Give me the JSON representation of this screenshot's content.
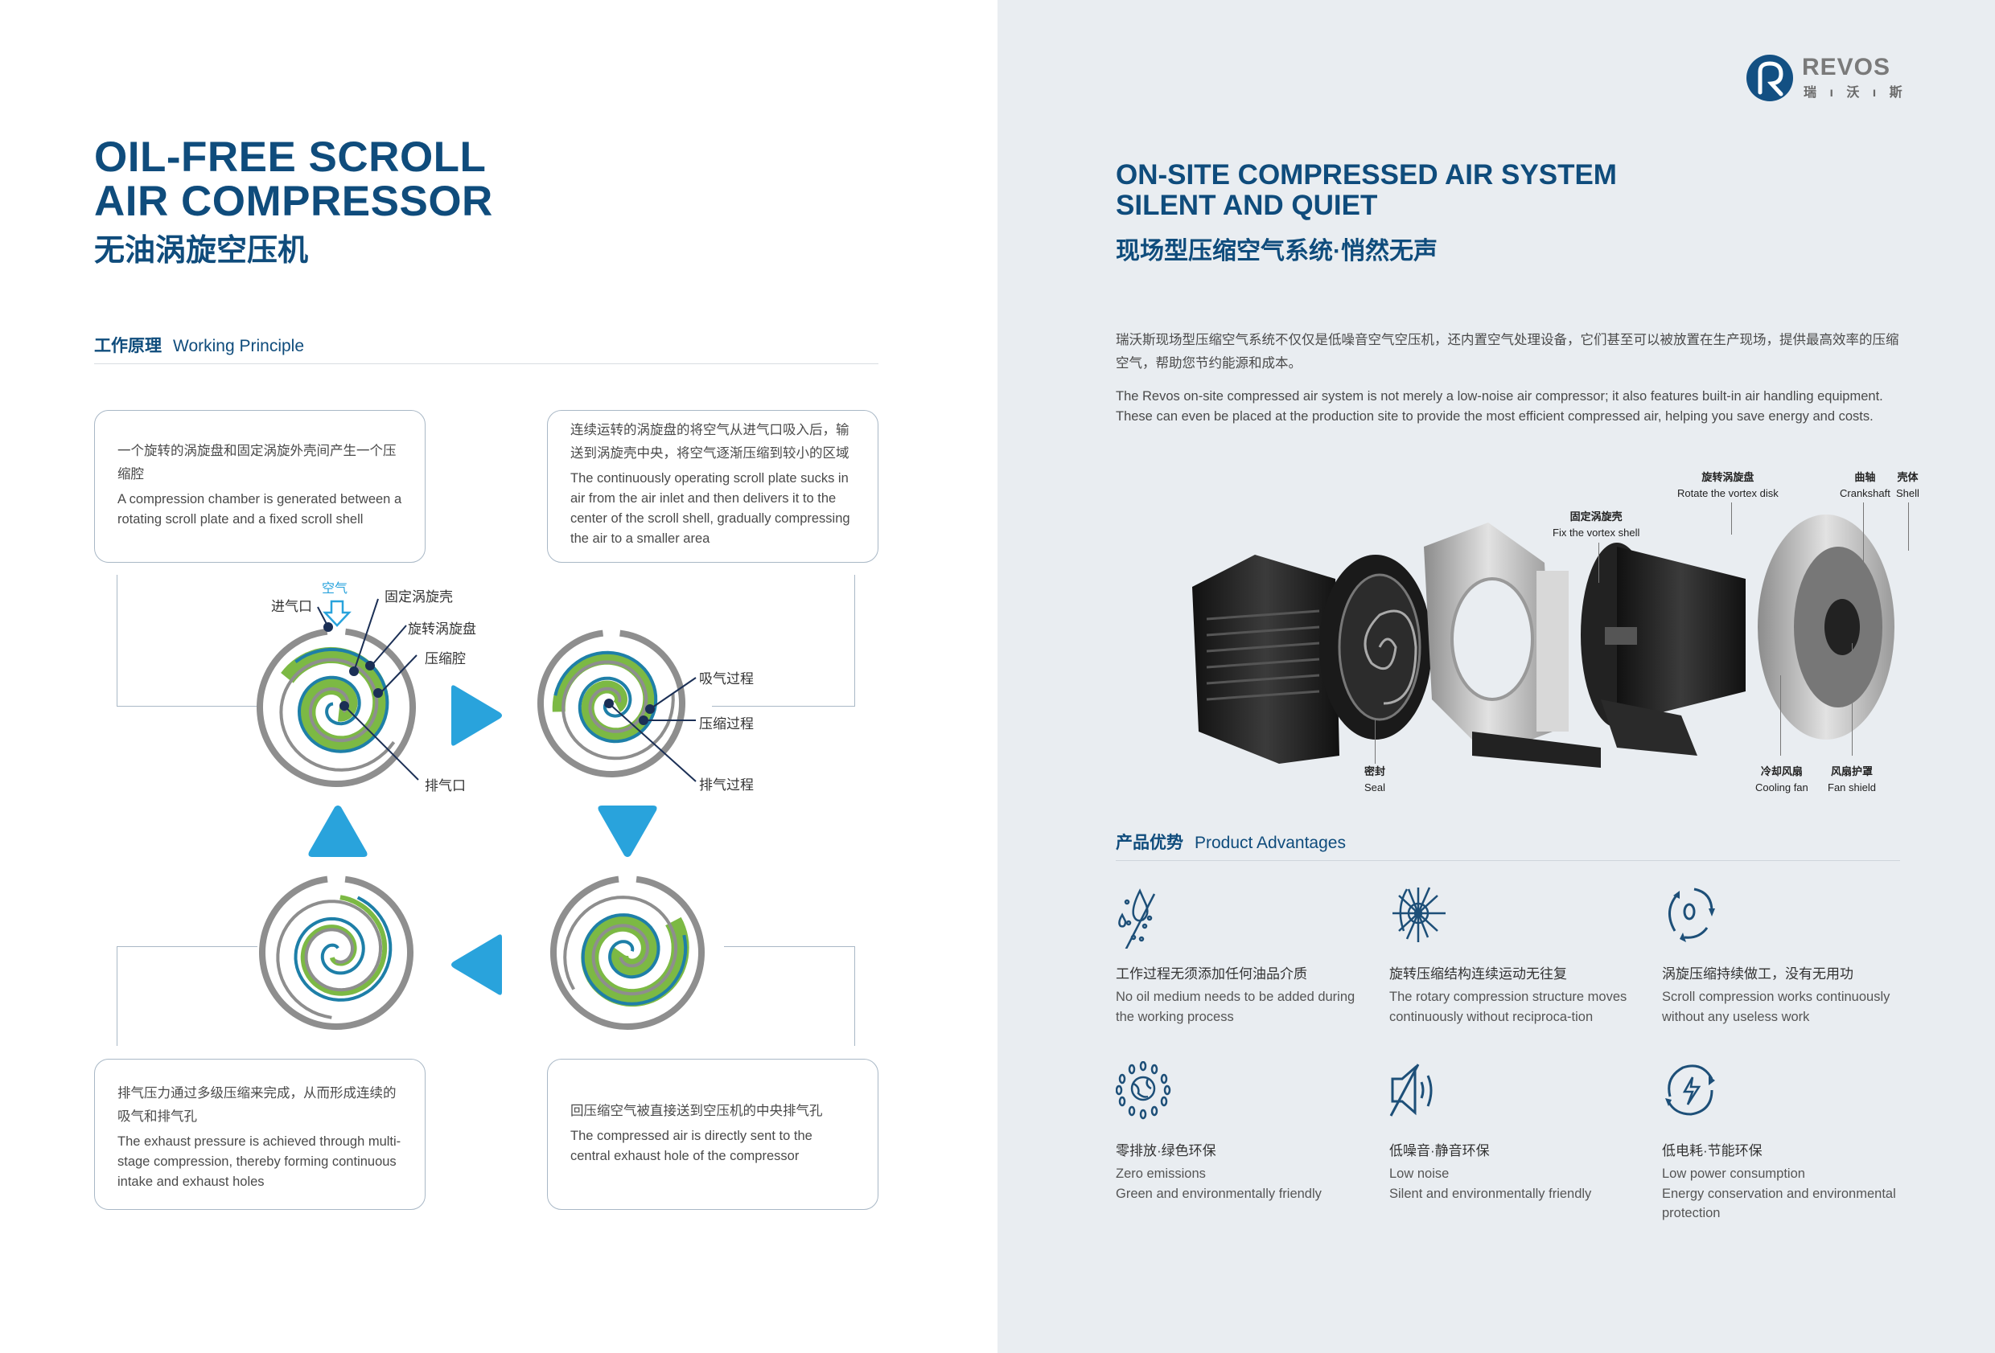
{
  "left": {
    "title_line1": "OIL-FREE SCROLL",
    "title_line2": "AIR COMPRESSOR",
    "title_zh": "无油涡旋空压机",
    "section_zh": "工作原理",
    "section_en": "Working Principle",
    "steps": [
      {
        "zh": "一个旋转的涡旋盘和固定涡旋外壳间产生一个压缩腔",
        "en": "A compression chamber is generated between a rotating scroll plate and a fixed scroll shell"
      },
      {
        "zh": "连续运转的涡旋盘的将空气从进气口吸入后，输送到涡旋壳中央，将空气逐渐压缩到较小的区域",
        "en": "The continuously operating scroll plate sucks in air from the air inlet and then delivers it to the center of the scroll shell, gradually compressing the air to a smaller area"
      },
      {
        "zh": "排气压力通过多级压缩来完成，从而形成连续的吸气和排气孔",
        "en": "The exhaust pressure is achieved through multi-stage compression, thereby forming continuous intake and exhaust holes"
      },
      {
        "zh": "回压缩空气被直接送到空压机的中央排气孔",
        "en": "The compressed air is directly sent to the central exhaust hole of the compressor"
      }
    ],
    "diagram1_labels": {
      "air": "空气",
      "inlet": "进气口",
      "fixed_shell": "固定涡旋壳",
      "rotating_disk": "旋转涡旋盘",
      "chamber": "压缩腔",
      "outlet": "排气口"
    },
    "diagram2_labels": {
      "intake": "吸气过程",
      "compress": "压缩过程",
      "exhaust": "排气过程"
    }
  },
  "right": {
    "logo_text": "REVOS",
    "logo_zh": "瑞 ı 沃 ı 斯",
    "title_line1": "ON-SITE COMPRESSED AIR SYSTEM",
    "title_line2": "SILENT AND QUIET",
    "title_zh": "现场型压缩空气系统·悄然无声",
    "intro_zh": "瑞沃斯现场型压缩空气系统不仅仅是低噪音空气空压机，还内置空气处理设备，它们甚至可以被放置在生产现场，提供最高效率的压缩空气，帮助您节约能源和成本。",
    "intro_en": "The Revos on-site compressed air system is not merely a low-noise air compressor; it also features built-in air handling equipment. These can even be placed at the production site to provide the most efficient compressed air, helping you save energy and costs.",
    "parts": [
      {
        "zh": "固定涡旋壳",
        "en": "Fix the vortex shell"
      },
      {
        "zh": "旋转涡旋盘",
        "en": "Rotate the vortex disk"
      },
      {
        "zh": "曲轴",
        "en": "Crankshaft"
      },
      {
        "zh": "壳体",
        "en": "Shell"
      },
      {
        "zh": "密封",
        "en": "Seal"
      },
      {
        "zh": "冷却风扇",
        "en": "Cooling fan"
      },
      {
        "zh": "风扇护罩",
        "en": "Fan shield"
      }
    ],
    "section_zh": "产品优势",
    "section_en": "Product Advantages",
    "features": [
      {
        "icon": "no-oil-drop-icon",
        "zh": "工作过程无须添加任何油品介质",
        "en": "No oil medium needs to be added during the working process"
      },
      {
        "icon": "rotary-structure-icon",
        "zh": "旋转压缩结构连续运动无往复",
        "en": "The rotary compression structure moves continuously without reciproca-tion"
      },
      {
        "icon": "continuous-cycle-icon",
        "zh": "涡旋压缩持续做工，没有无用功",
        "en": "Scroll compression works continuously without any useless work"
      },
      {
        "icon": "globe-leaves-icon",
        "zh": "零排放·绿色环保",
        "en": "Zero emissions",
        "en2": "Green and environmentally friendly"
      },
      {
        "icon": "mute-speaker-icon",
        "zh": "低噪音·静音环保",
        "en": "Low noise",
        "en2": "Silent and environmentally friendly"
      },
      {
        "icon": "energy-cycle-icon",
        "zh": "低电耗·节能环保",
        "en": "Low power consumption",
        "en2": "Energy conservation and environmental protection"
      }
    ]
  },
  "colors": {
    "navy": "#0f4c7c",
    "accent_blue": "#29a3dc",
    "green": "#7cb944",
    "gray": "#8e8e8e",
    "right_bg": "#e9edf1"
  }
}
